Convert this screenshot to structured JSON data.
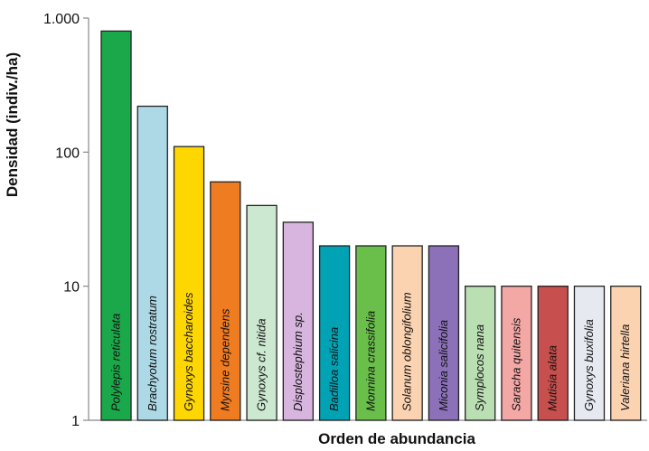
{
  "chart_data": {
    "type": "bar",
    "ylabel": "Densidad (indiv./ha)",
    "xlabel": "Orden de abundancia",
    "yscale": "log",
    "ylim": [
      1,
      1000
    ],
    "yticks": [
      {
        "value": 1,
        "label": "1"
      },
      {
        "value": 10,
        "label": "10"
      },
      {
        "value": 100,
        "label": "100"
      },
      {
        "value": 1000,
        "label": "1.000"
      }
    ],
    "grid": false,
    "categories": [
      "Polylepis reticulata",
      "Brachyotum rostratum",
      "Gynoxys baccharoides",
      "Myrsine dependens",
      "Gynoxys cf. nitida",
      "Displostephium sp.",
      "Badilloa salicina",
      "Monnina crassifolia",
      "Solanum oblongifolium",
      "Miconia salicifolia",
      "Symplocos nana",
      "Saracha quitensis",
      "Mutisia alata",
      "Gynoxys buxifolia",
      "Valeriana hirtella"
    ],
    "values": [
      800,
      220,
      110,
      60,
      40,
      30,
      20,
      20,
      20,
      20,
      10,
      10,
      10,
      10,
      10
    ],
    "colors": [
      "#1aa84a",
      "#add8e6",
      "#ffd700",
      "#f07c22",
      "#cde8d0",
      "#d7b5de",
      "#00a2b4",
      "#6abf4b",
      "#fbd3b0",
      "#8c70b8",
      "#b9dfb2",
      "#f3a8a6",
      "#c74f4d",
      "#e6e9f0",
      "#fbd3b0"
    ],
    "label_colors": [
      "#ffffff",
      "#111111",
      "#111111",
      "#111111",
      "#111111",
      "#111111",
      "#ffffff",
      "#111111",
      "#111111",
      "#ffffff",
      "#111111",
      "#111111",
      "#ffffff",
      "#111111",
      "#111111"
    ]
  }
}
